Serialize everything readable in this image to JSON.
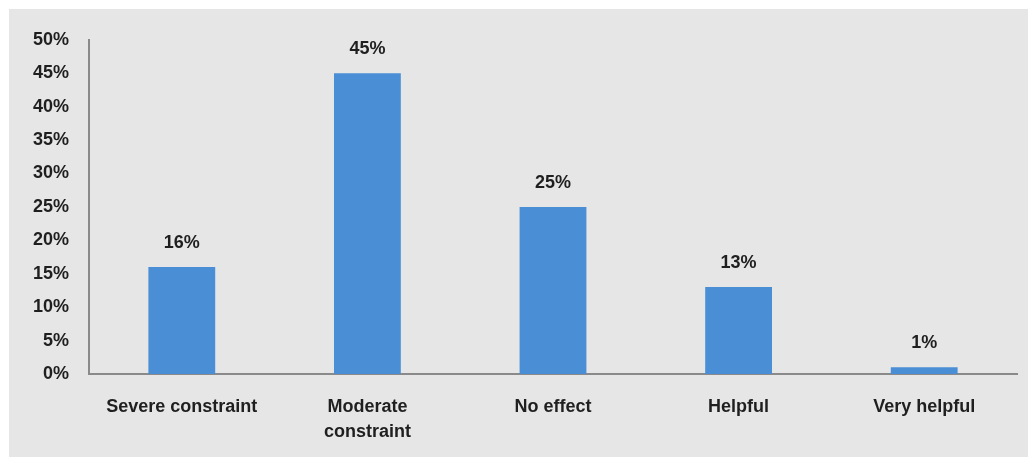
{
  "chart_data": {
    "type": "bar",
    "categories": [
      "Severe constraint",
      "Moderate constraint",
      "No effect",
      "Helpful",
      "Very helpful"
    ],
    "values": [
      16,
      45,
      25,
      13,
      1
    ],
    "value_labels": [
      "16%",
      "45%",
      "25%",
      "13%",
      "1%"
    ],
    "color": "#4a8fd6",
    "ylim": [
      0,
      50
    ],
    "yticks": [
      {
        "value": 0,
        "label": "0%"
      },
      {
        "value": 5,
        "label": "5%"
      },
      {
        "value": 10,
        "label": "10%"
      },
      {
        "value": 15,
        "label": "15%"
      },
      {
        "value": 20,
        "label": "20%"
      },
      {
        "value": 25,
        "label": "25%"
      },
      {
        "value": 30,
        "label": "30%"
      },
      {
        "value": 35,
        "label": "35%"
      },
      {
        "value": 40,
        "label": "40%"
      },
      {
        "value": 45,
        "label": "45%"
      },
      {
        "value": 50,
        "label": "50%"
      }
    ]
  }
}
